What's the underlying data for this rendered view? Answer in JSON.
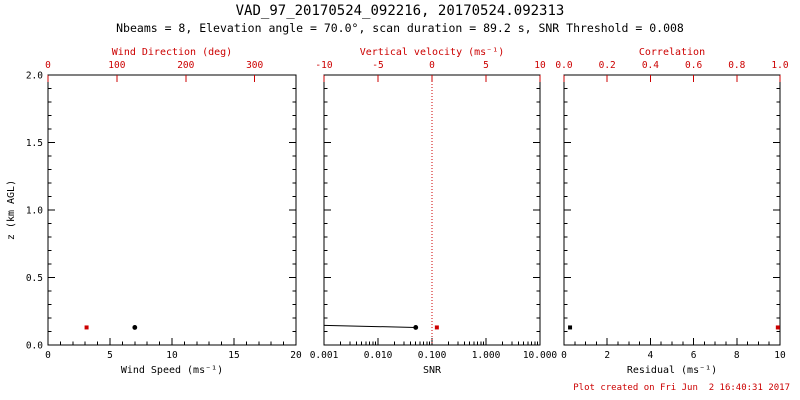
{
  "title": "VAD_97_20170524_092216, 20170524.092313",
  "subtitle": "Nbeams = 8, Elevation angle = 70.0°, scan duration = 89.2 s, SNR Threshold = 0.008",
  "footer": "Plot created on Fri Jun  2 16:40:31 2017",
  "colors": {
    "axis": "#000000",
    "secondary": "#cc0000",
    "background": "#ffffff"
  },
  "chart_data": [
    {
      "type": "scatter",
      "name": "wind-panel",
      "x_axis": {
        "label": "Wind Speed (ms⁻¹)",
        "min": 0,
        "max": 20,
        "ticks": [
          0,
          5,
          10,
          15,
          20
        ],
        "tick_labels": [
          "0",
          "5",
          "10",
          "15",
          "20"
        ],
        "minor_per_major": 5
      },
      "top_axis": {
        "label": "Wind Direction (deg)",
        "min": 0,
        "max": 360,
        "ticks": [
          0,
          100,
          200,
          300
        ],
        "tick_labels": [
          "0",
          "100",
          "200",
          "300"
        ],
        "color": "#cc0000"
      },
      "y_axis": {
        "label": "z (km AGL)",
        "min": 0,
        "max": 2,
        "ticks": [
          0,
          0.5,
          1,
          1.5,
          2
        ],
        "tick_labels": [
          "0.0",
          "0.5",
          "1.0",
          "1.5",
          "2.0"
        ],
        "minor_per_major": 5
      },
      "series": [
        {
          "name": "wind-speed",
          "axis": "bottom",
          "marker": "circle",
          "color": "#000000",
          "points": [
            {
              "x": 7.0,
              "z": 0.13
            }
          ]
        },
        {
          "name": "wind-direction",
          "axis": "top",
          "marker": "square",
          "color": "#cc0000",
          "points": [
            {
              "x": 56,
              "z": 0.13
            }
          ]
        }
      ]
    },
    {
      "type": "scatter",
      "name": "snr-panel",
      "x_axis": {
        "label": "SNR",
        "scale": "log",
        "min": 0.001,
        "max": 10,
        "ticks": [
          0.001,
          0.01,
          0.1,
          1,
          10
        ],
        "tick_labels": [
          "0.001",
          "0.010",
          "0.100",
          "1.000",
          "10.000"
        ]
      },
      "top_axis": {
        "label": "Vertical velocity (ms⁻¹)",
        "min": -10,
        "max": 10,
        "ticks": [
          -10,
          -5,
          0,
          5,
          10
        ],
        "tick_labels": [
          "-10",
          "-5",
          "0",
          "5",
          "10"
        ],
        "color": "#cc0000"
      },
      "y_axis": {
        "min": 0,
        "max": 2,
        "ticks": [
          0,
          0.5,
          1,
          1.5,
          2
        ],
        "tick_labels": [],
        "minor_per_major": 5
      },
      "reference_line": {
        "axis": "top",
        "value": 0,
        "style": "dotted",
        "color": "#cc0000"
      },
      "series": [
        {
          "name": "snr-profile",
          "axis": "bottom",
          "line": true,
          "marker": "circle",
          "marker_on": "last",
          "color": "#000000",
          "points": [
            {
              "x": 0.001,
              "z": 0.145
            },
            {
              "x": 0.05,
              "z": 0.13
            }
          ]
        },
        {
          "name": "vertical-velocity",
          "axis": "top",
          "marker": "square",
          "color": "#cc0000",
          "points": [
            {
              "x": 0.45,
              "z": 0.13
            }
          ]
        }
      ]
    },
    {
      "type": "scatter",
      "name": "residual-panel",
      "x_axis": {
        "label": "Residual (ms⁻¹)",
        "min": 0,
        "max": 10,
        "ticks": [
          0,
          2,
          4,
          6,
          8,
          10
        ],
        "tick_labels": [
          "0",
          "2",
          "4",
          "6",
          "8",
          "10"
        ],
        "minor_per_major": 4
      },
      "top_axis": {
        "label": "Correlation",
        "min": 0,
        "max": 1,
        "ticks": [
          0,
          0.2,
          0.4,
          0.6,
          0.8,
          1
        ],
        "tick_labels": [
          "0.0",
          "0.2",
          "0.4",
          "0.6",
          "0.8",
          "1.0"
        ],
        "color": "#cc0000"
      },
      "y_axis": {
        "min": 0,
        "max": 2,
        "ticks": [
          0,
          0.5,
          1,
          1.5,
          2
        ],
        "tick_labels": [],
        "minor_per_major": 5
      },
      "series": [
        {
          "name": "residual",
          "axis": "bottom",
          "marker": "square",
          "color": "#000000",
          "points": [
            {
              "x": 0.28,
              "z": 0.13
            }
          ]
        },
        {
          "name": "correlation",
          "axis": "top",
          "marker": "square",
          "color": "#cc0000",
          "points": [
            {
              "x": 0.99,
              "z": 0.13
            }
          ]
        }
      ]
    }
  ]
}
